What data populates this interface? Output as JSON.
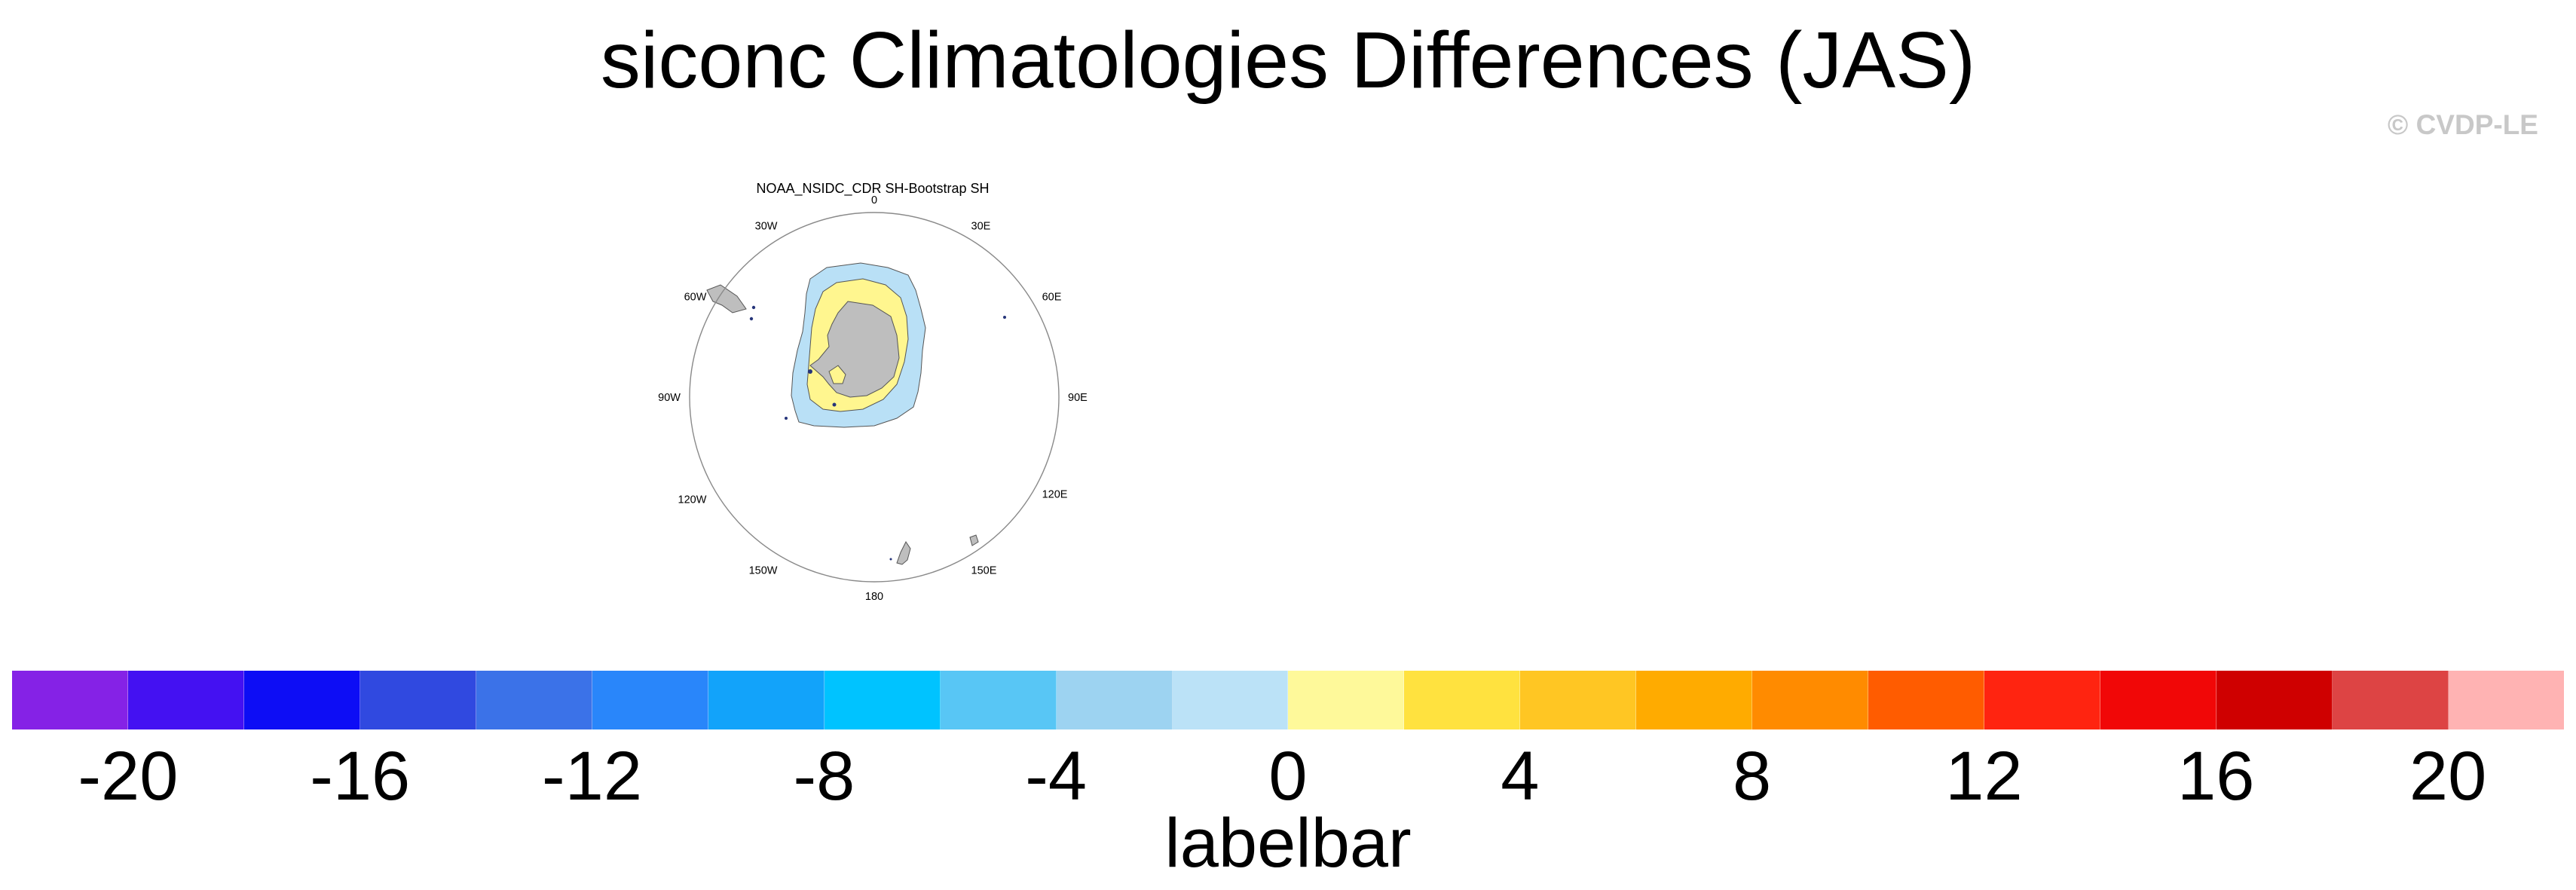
{
  "figure": {
    "title": "siconc Climatologies Differences (JAS)",
    "credit": "© CVDP-LE"
  },
  "panel": {
    "title": "NOAA_NSIDC_CDR SH-Bootstrap SH",
    "projection": "south-polar-stereographic",
    "lon_labels": [
      "0",
      "30E",
      "60E",
      "90E",
      "120E",
      "150E",
      "180",
      "150W",
      "120W",
      "90W",
      "60W",
      "30W"
    ],
    "colors": {
      "land": "#bebebe",
      "coast": "#555555",
      "band_0_to_2": "#fff68f",
      "band_neg2_to_0": "#b9e0f6",
      "rim": "#8a8a8a"
    }
  },
  "labelbar": {
    "label": "labelbar",
    "ticks": [
      "-20",
      "-16",
      "-12",
      "-8",
      "-4",
      "0",
      "4",
      "8",
      "12",
      "16",
      "20"
    ],
    "colors": [
      "#8522e6",
      "#4411f2",
      "#0d0df5",
      "#3049e0",
      "#3b72e8",
      "#2986fa",
      "#12a3fa",
      "#00c3ff",
      "#58c6f5",
      "#9dd3f1",
      "#bbe2f7",
      "#fef99a",
      "#ffe23f",
      "#ffc623",
      "#ffab00",
      "#ff8b00",
      "#ff5c00",
      "#ff2410",
      "#f10707",
      "#cf0000",
      "#dd4444",
      "#ffb3b3"
    ]
  }
}
